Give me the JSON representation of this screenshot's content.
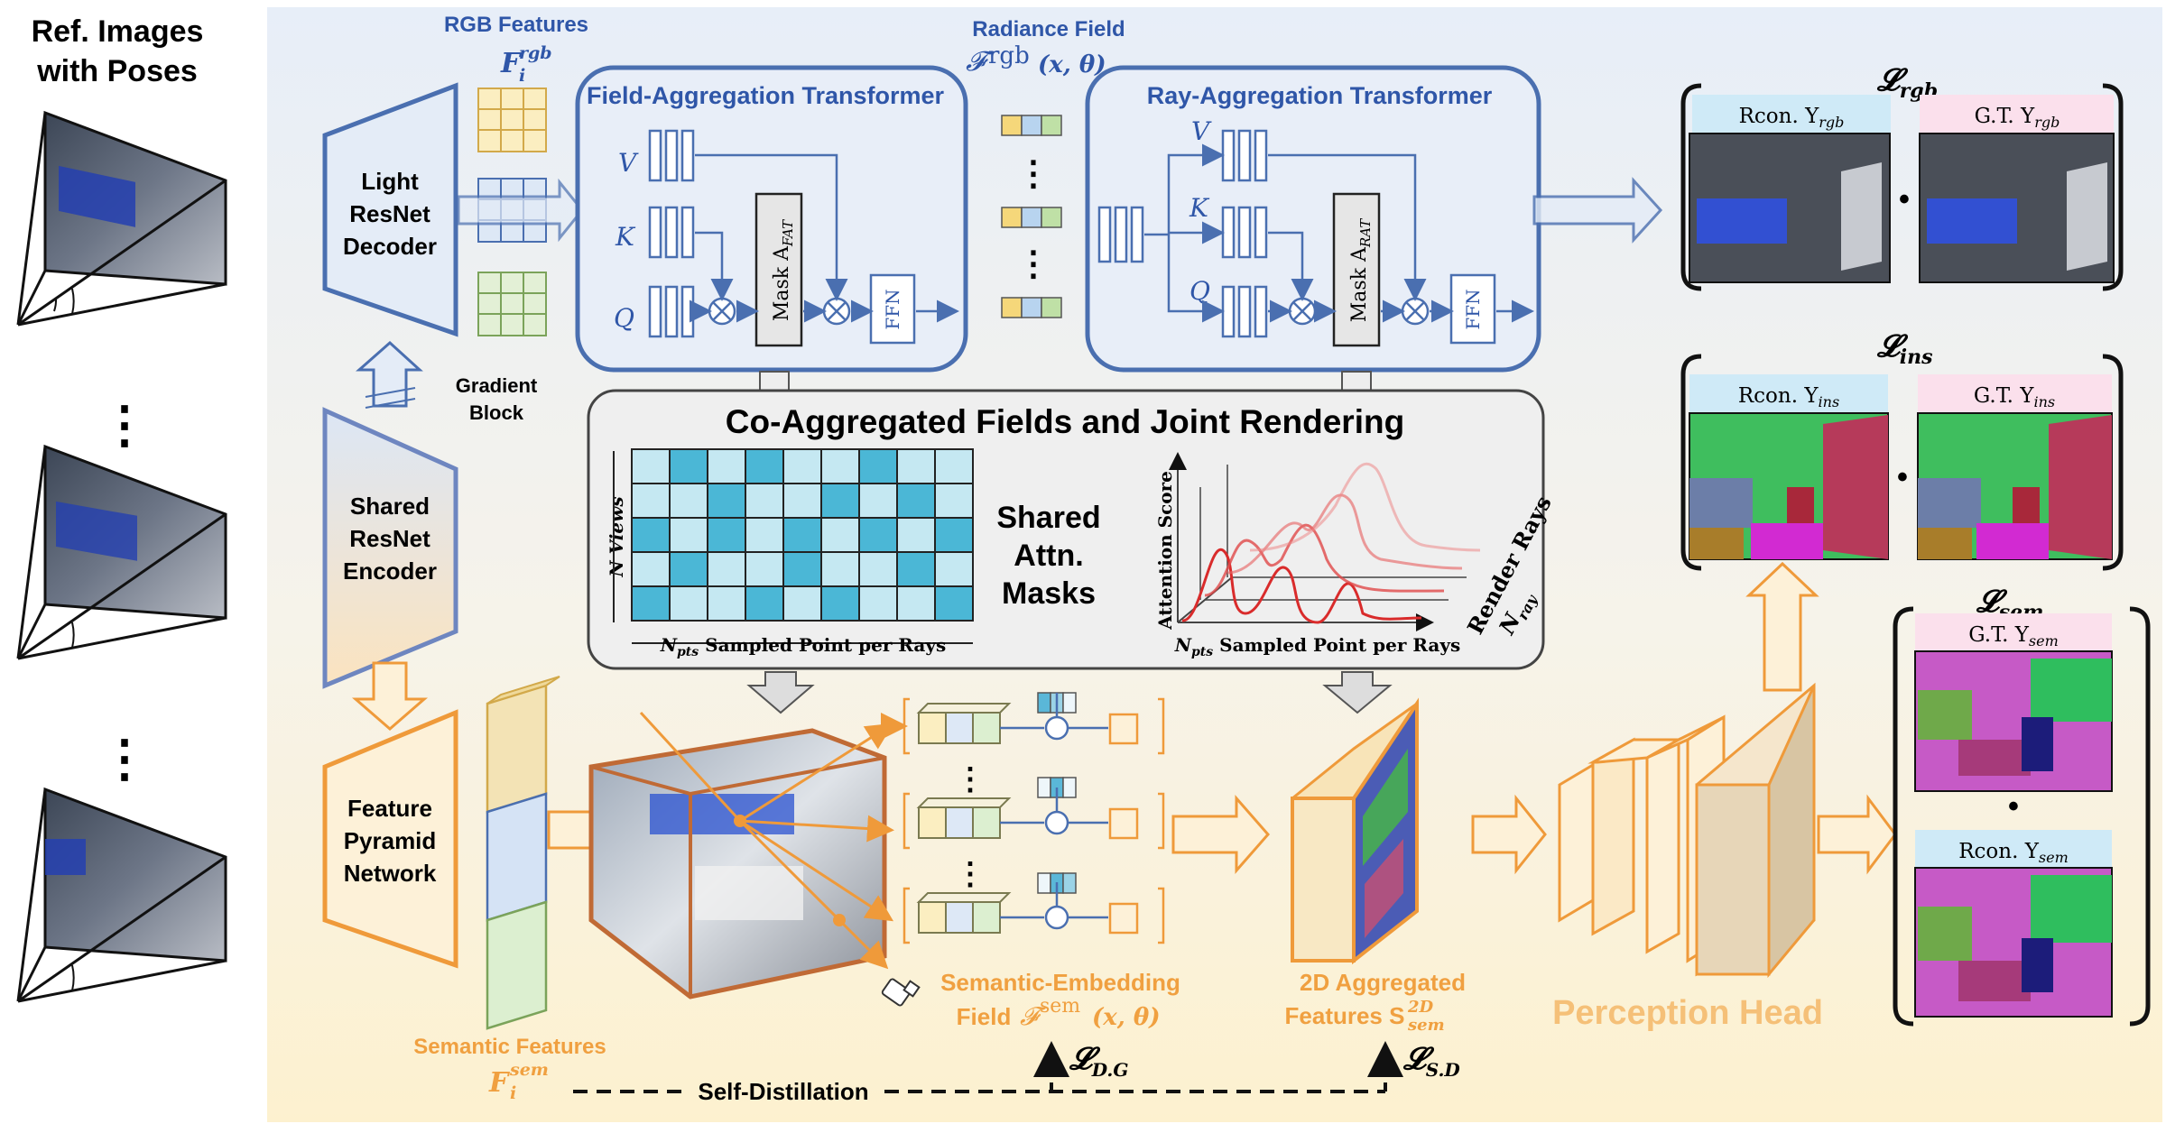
{
  "ref_images": {
    "title_lines": [
      "Ref. Images",
      "with Poses"
    ],
    "dots": [
      "⋮",
      "⋮"
    ]
  },
  "encoder": {
    "light_decoder": [
      "Light",
      "ResNet",
      "Decoder"
    ],
    "shared_encoder": [
      "Shared",
      "ResNet",
      "Encoder"
    ],
    "fpn": [
      "Feature",
      "Pyramid",
      "Network"
    ],
    "gradient_block": [
      "Gradient",
      "Block"
    ]
  },
  "features": {
    "rgb_title": "RGB Features",
    "rgb_symbol": "F",
    "rgb_sup": "rgb",
    "rgb_sub": "i",
    "sem_title": "Semantic Features",
    "sem_symbol": "F",
    "sem_sup": "sem",
    "sem_sub": "i"
  },
  "radiance_field": {
    "title": "Radiance Field",
    "symbol": "𝓕",
    "sup": "rgb",
    "args": "(x, θ)"
  },
  "fat": {
    "title": "Field-Aggregation Transformer",
    "v": "V",
    "k": "K",
    "q": "Q",
    "mask": "Mask A",
    "mask_sub": "FAT",
    "ffn": "FFN"
  },
  "rat": {
    "title": "Ray-Aggregation Transformer",
    "v": "V",
    "k": "K",
    "q": "Q",
    "mask": "Mask A",
    "mask_sub": "RAT",
    "ffn": "FFN"
  },
  "co_agg": {
    "title": "Co-Aggregated Fields and Joint Rendering",
    "shared_lines": [
      "Shared",
      "Attn.",
      "Masks"
    ],
    "heatmap_ylabel": "N Views",
    "heatmap_xlabel_sym": "N",
    "heatmap_xlabel_sub": "pts",
    "heatmap_xlabel": " Sampled Point per Rays",
    "curve_ylabel": "Attention Score",
    "curve_xlabel_sym": "N",
    "curve_xlabel_sub": "pts",
    "curve_xlabel": " Sampled Point per Rays",
    "curve_zlabel": "Render Rays",
    "curve_zsym": "N",
    "curve_zsub": "ray"
  },
  "losses": {
    "rgb": {
      "sym": "𝓛",
      "sub": "rgb",
      "left": "Rcon. Y",
      "left_sub": "rgb",
      "right": "G.T. Y",
      "right_sub": "rgb"
    },
    "ins": {
      "sym": "𝓛",
      "sub": "ins",
      "left": "Rcon. Y",
      "left_sub": "ins",
      "right": "G.T. Y",
      "right_sub": "ins"
    },
    "sem": {
      "sym": "𝓛",
      "sub": "sem",
      "top": "G.T. Y",
      "top_sub": "sem",
      "bottom": "Rcon. Y",
      "bottom_sub": "sem"
    },
    "dg": {
      "sym": "𝓛",
      "sub": "D.G"
    },
    "sd": {
      "sym": "𝓛",
      "sub": "S.D"
    },
    "dot": "•"
  },
  "bottom": {
    "sem_field_line1": "Semantic-Embedding",
    "sem_field_line2": "Field",
    "sem_field_sym": "𝓕",
    "sem_field_sup": "sem",
    "sem_field_args": "(x, θ)",
    "agg_line1": "2D Aggregated",
    "agg_line2": "Features S",
    "agg_sup": "2D",
    "agg_sub": "sem",
    "perception_head": "Perception Head",
    "self_distillation": "Self-Distillation",
    "vdots": "⋮"
  },
  "colors": {
    "blue": "#4a6fb0",
    "blue_light": "#e8eef8",
    "orange": "#ef9a3a",
    "orange_text": "#f0a040",
    "cream_top": "#e9eff7",
    "cream_bottom": "#fdf3d6",
    "heat_dark": "#4bb7d6",
    "heat_light": "#c5e8f2",
    "curve": "#e05555"
  }
}
